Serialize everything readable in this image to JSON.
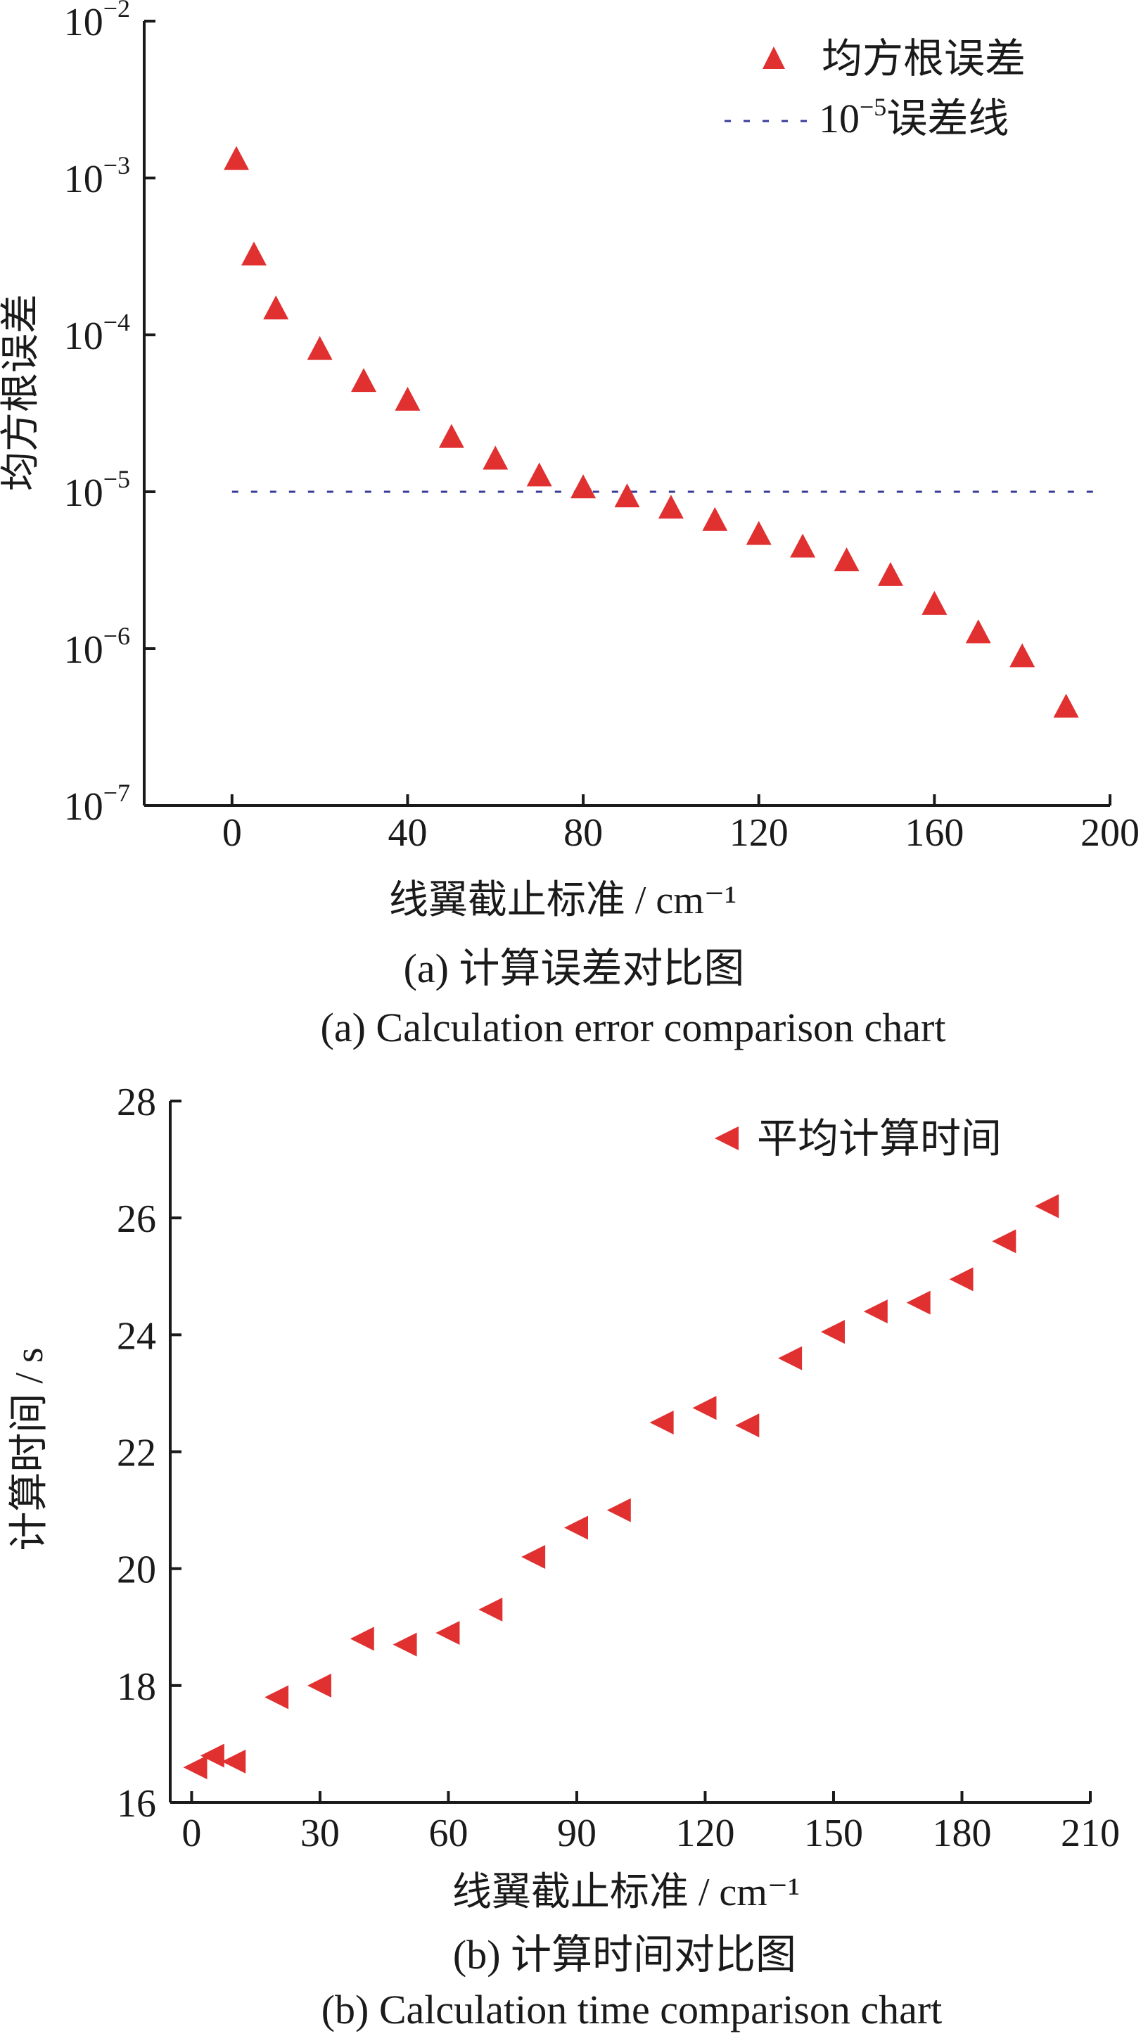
{
  "colors": {
    "marker": "#e03030",
    "reference_line": "#3a3a9a",
    "axis": "#1a1a1a"
  },
  "chart_data": [
    {
      "type": "scatter",
      "caption_zh": "(a) 计算误差对比图",
      "caption_en": "(a) Calculation error comparison chart",
      "xlabel": "线翼截止标准 / cm⁻¹",
      "ylabel": "均方根误差",
      "xlim": [
        -20,
        200
      ],
      "ylim": [
        1e-07,
        0.01
      ],
      "yscale": "log",
      "x_ticks": [
        0,
        40,
        80,
        120,
        160,
        200
      ],
      "x_tick_labels": [
        "0",
        "40",
        "80",
        "120",
        "160",
        "200"
      ],
      "y_ticks": [
        1e-07,
        1e-06,
        1e-05,
        0.0001,
        0.001,
        0.01
      ],
      "y_tick_labels": [
        {
          "base": "10",
          "exp": "−7"
        },
        {
          "base": "10",
          "exp": "−6"
        },
        {
          "base": "10",
          "exp": "−5"
        },
        {
          "base": "10",
          "exp": "−4"
        },
        {
          "base": "10",
          "exp": "−3"
        },
        {
          "base": "10",
          "exp": "−2"
        }
      ],
      "grid": false,
      "legend_position": "top-right",
      "series": [
        {
          "name": "均方根误差",
          "marker": "triangle-up",
          "color": "#e03030",
          "x": [
            1,
            5,
            10,
            20,
            30,
            40,
            50,
            60,
            70,
            80,
            90,
            100,
            110,
            120,
            130,
            140,
            150,
            160,
            170,
            180,
            190
          ],
          "y": [
            0.0013,
            0.00032,
            0.000145,
            8e-05,
            5e-05,
            3.8e-05,
            2.2e-05,
            1.6e-05,
            1.25e-05,
            1.05e-05,
            9.2e-06,
            7.8e-06,
            6.5e-06,
            5.3e-06,
            4.4e-06,
            3.6e-06,
            2.9e-06,
            1.9e-06,
            1.25e-06,
            8.8e-07,
            4.2e-07
          ]
        }
      ],
      "reference_lines": [
        {
          "name_base": "10",
          "name_exp": "−5",
          "name_suffix": "误差线",
          "y": 1e-05,
          "x_range": [
            0,
            200
          ],
          "style": "dashed",
          "color": "#3a3a9a"
        }
      ]
    },
    {
      "type": "scatter",
      "caption_zh": "(b) 计算时间对比图",
      "caption_en": "(b) Calculation time comparison chart",
      "xlabel": "线翼截止标准 / cm⁻¹",
      "ylabel": "计算时间 / s",
      "xlim": [
        -5,
        210
      ],
      "ylim": [
        16,
        28
      ],
      "yscale": "linear",
      "x_ticks": [
        0,
        30,
        60,
        90,
        120,
        150,
        180,
        210
      ],
      "x_tick_labels": [
        "0",
        "30",
        "60",
        "90",
        "120",
        "150",
        "180",
        "210"
      ],
      "y_ticks": [
        16,
        18,
        20,
        22,
        24,
        26,
        28
      ],
      "y_tick_labels": [
        "16",
        "18",
        "20",
        "22",
        "24",
        "26",
        "28"
      ],
      "grid": false,
      "legend_position": "top-right",
      "series": [
        {
          "name": "平均计算时间",
          "marker": "triangle-left",
          "color": "#e03030",
          "x": [
            1,
            5,
            10,
            20,
            30,
            40,
            50,
            60,
            70,
            80,
            90,
            100,
            110,
            120,
            130,
            140,
            150,
            160,
            170,
            180,
            190,
            200
          ],
          "y": [
            16.6,
            16.8,
            16.7,
            17.8,
            18.0,
            18.8,
            18.7,
            18.9,
            19.3,
            20.2,
            20.7,
            21.0,
            22.5,
            22.75,
            22.45,
            23.6,
            24.05,
            24.4,
            24.55,
            24.95,
            25.6,
            26.2
          ]
        }
      ]
    }
  ]
}
